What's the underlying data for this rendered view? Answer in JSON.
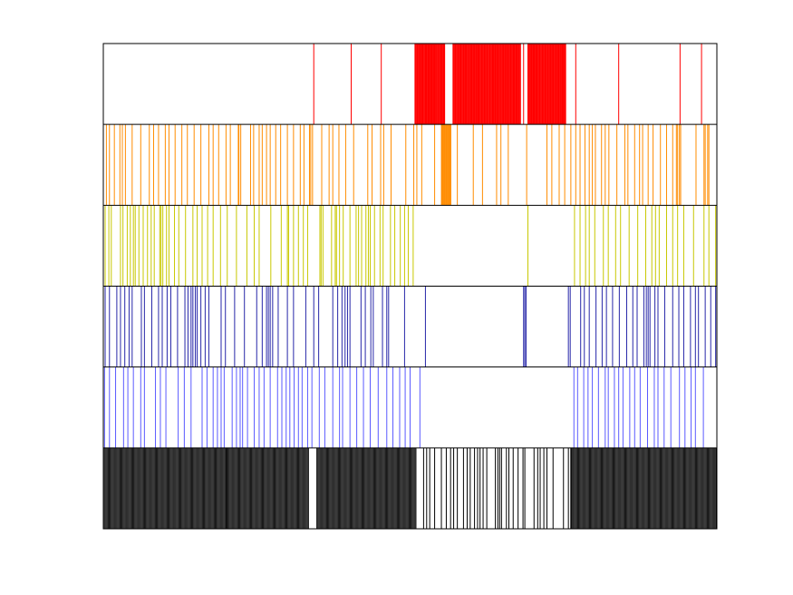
{
  "chart_data": {
    "type": "event-raster",
    "title": "",
    "xlabel": "",
    "ylabel": "",
    "grid": false,
    "legend": "none",
    "xlim": [
      0,
      1000
    ],
    "note": "",
    "rows": [
      {
        "color": "#ff0000",
        "segments": [],
        "events": [
          343,
          404,
          453,
          508,
          512,
          516,
          520,
          526,
          531,
          535,
          540,
          552,
          556,
          570,
          581,
          590,
          600,
          605,
          611,
          617,
          623,
          630,
          636,
          643,
          652,
          657,
          664,
          669,
          674,
          685,
          692,
          696,
          701,
          706,
          711,
          716,
          722,
          727,
          733,
          738,
          742,
          748,
          753,
          770,
          840,
          940,
          975
        ],
        "dense": [
          [
            508,
            557
          ],
          [
            570,
            681
          ],
          [
            692,
            754
          ]
        ]
      },
      {
        "color": "#ff8c00",
        "events": [
          5,
          10,
          18,
          27,
          31,
          36,
          47,
          61,
          75,
          82,
          90,
          101,
          107,
          117,
          128,
          137,
          148,
          159,
          172,
          179,
          188,
          200,
          207,
          220,
          221,
          224,
          240,
          245,
          254,
          259,
          266,
          272,
          281,
          289,
          300,
          310,
          321,
          327,
          336,
          338,
          341,
          356,
          368,
          374,
          384,
          395,
          408,
          431,
          438,
          452,
          457,
          469,
          493,
          506,
          511,
          519,
          540,
          552,
          566,
          577,
          603,
          618,
          641,
          648,
          660,
          690,
          723,
          731,
          743,
          752,
          762,
          770,
          777,
          785,
          792,
          797,
          802,
          812,
          818,
          824,
          837,
          850,
          855,
          866,
          874,
          879,
          888,
          896,
          908,
          918,
          928,
          934,
          936,
          939,
          941,
          966,
          979,
          981,
          985,
          987
        ],
        "dense": [
          [
            551,
            567
          ]
        ]
      },
      {
        "color": "#c8c800",
        "events": [
          0,
          3,
          9,
          13,
          28,
          32,
          39,
          44,
          49,
          52,
          58,
          65,
          72,
          78,
          83,
          92,
          94,
          97,
          103,
          107,
          116,
          123,
          134,
          146,
          153,
          161,
          170,
          179,
          191,
          202,
          217,
          234,
          246,
          254,
          273,
          290,
          300,
          302,
          310,
          318,
          326,
          333,
          353,
          355,
          358,
          372,
          378,
          380,
          385,
          391,
          402,
          412,
          416,
          421,
          428,
          432,
          435,
          442,
          451,
          456,
          468,
          475,
          484,
          491,
          497,
          505,
          692,
          768,
          777,
          786,
          792,
          801,
          815,
          823,
          835,
          843,
          857,
          871,
          884,
          894,
          900,
          906,
          918,
          928,
          936,
          946,
          962,
          979,
          987,
          998
        ]
      },
      {
        "color": "#2626a8",
        "events": [
          3,
          10,
          22,
          28,
          35,
          42,
          47,
          62,
          67,
          79,
          90,
          96,
          104,
          110,
          121,
          133,
          138,
          143,
          146,
          150,
          153,
          159,
          166,
          172,
          192,
          199,
          214,
          230,
          250,
          259,
          266,
          269,
          272,
          276,
          285,
          300,
          310,
          330,
          343,
          351,
          374,
          382,
          389,
          394,
          398,
          402,
          420,
          427,
          436,
          440,
          455,
          462,
          465,
          491,
          525,
          685,
          687,
          689,
          758,
          761,
          778,
          784,
          792,
          803,
          813,
          820,
          830,
          841,
          853,
          863,
          870,
          881,
          885,
          888,
          891,
          899,
          904,
          915,
          928,
          938,
          946,
          957,
          965,
          970,
          981,
          990,
          998
        ]
      },
      {
        "color": "#5a5aff",
        "events": [
          2,
          10,
          20,
          33,
          40,
          49,
          61,
          67,
          85,
          93,
          102,
          122,
          132,
          143,
          161,
          169,
          179,
          186,
          192,
          197,
          210,
          217,
          223,
          227,
          235,
          246,
          254,
          262,
          272,
          284,
          291,
          298,
          304,
          311,
          318,
          324,
          333,
          340,
          352,
          361,
          374,
          385,
          390,
          402,
          413,
          424,
          435,
          448,
          462,
          472,
          483,
          492,
          500,
          516,
          767,
          773,
          783,
          790,
          797,
          807,
          818,
          823,
          833,
          840,
          847,
          858,
          866,
          875,
          887,
          898,
          904,
          914,
          925,
          939,
          948,
          958,
          965,
          978
        ]
      },
      {
        "color": "#000000",
        "events": [
          522,
          527,
          532,
          540,
          551,
          559,
          566,
          571,
          577,
          587,
          593,
          598,
          605,
          610,
          614,
          619,
          625,
          639,
          643,
          646,
          649,
          657,
          661,
          668,
          676,
          684,
          687,
          702,
          708,
          712,
          718,
          723,
          733,
          750,
          758,
          762
        ],
        "dense": [
          [
            0,
            200
          ],
          [
            200,
            335
          ],
          [
            348,
            510
          ],
          [
            762,
            1000
          ]
        ]
      }
    ]
  }
}
